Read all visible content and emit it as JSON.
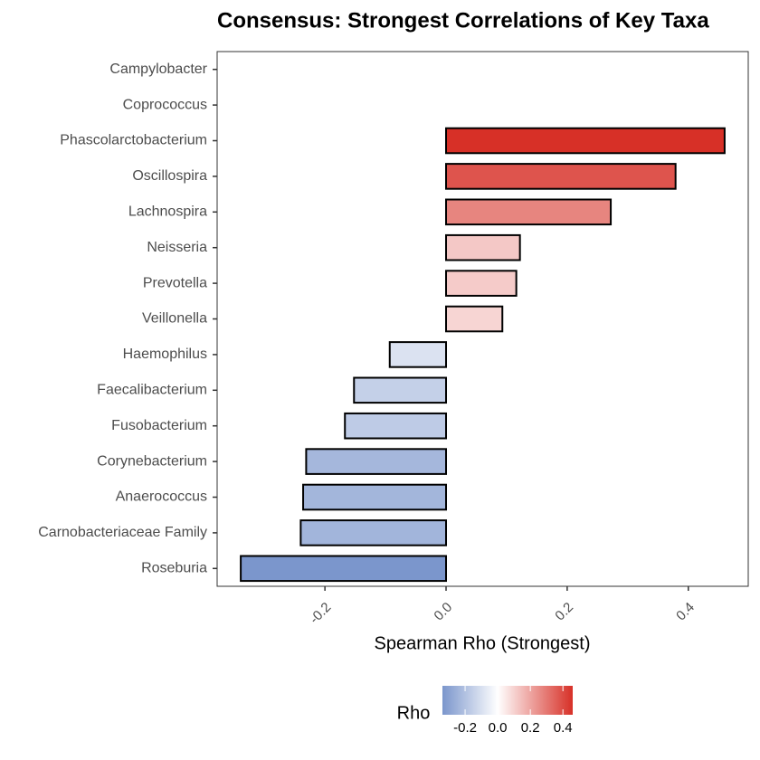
{
  "chart_data": {
    "type": "bar",
    "orientation": "horizontal",
    "title": "Consensus: Strongest Correlations of Key Taxa",
    "x_label": "Spearman Rho (Strongest)",
    "categories": [
      "Campylobacter",
      "Coprococcus",
      "Phascolarctobacterium",
      "Oscillospira",
      "Lachnospira",
      "Neisseria",
      "Prevotella",
      "Veillonella",
      "Haemophilus",
      "Faecalibacterium",
      "Fusobacterium",
      "Corynebacterium",
      "Anaerococcus",
      "Carnobacteriaceae Family",
      "Roseburia"
    ],
    "values": [
      null,
      null,
      0.46,
      0.379,
      0.272,
      0.122,
      0.116,
      0.093,
      -0.093,
      -0.152,
      -0.167,
      -0.231,
      -0.236,
      -0.24,
      -0.339
    ],
    "xlim": [
      -0.378,
      0.499
    ],
    "xticks": [
      -0.2,
      {
        "value": 0,
        "label": "0.0"
      },
      0.2,
      0.4
    ],
    "colorscale": {
      "low": "#7b96cc",
      "mid": "#ffffff",
      "high": "#d73027"
    },
    "legend": {
      "title": "Rho",
      "position": "bottom",
      "ticks": [
        -0.2,
        {
          "value": 0,
          "label": "0.0"
        },
        0.2,
        0.4
      ]
    }
  }
}
